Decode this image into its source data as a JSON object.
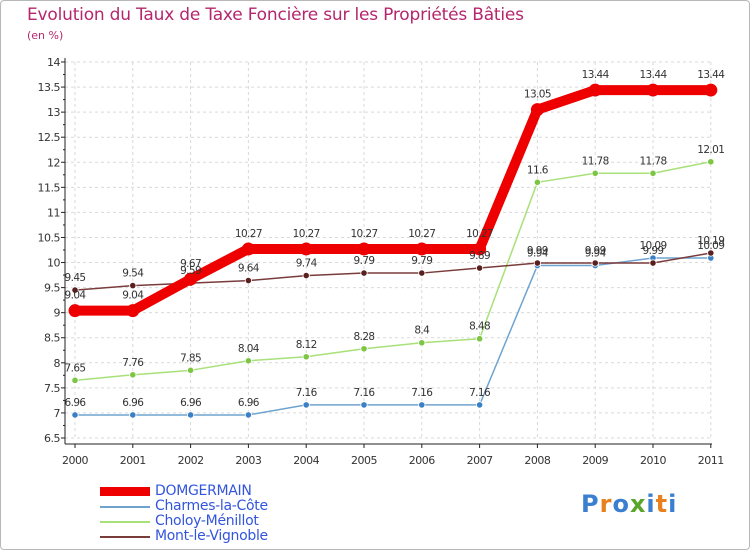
{
  "title": "Evolution du Taux de Taxe Foncière sur les Propriétés Bâties",
  "subtitle": "(en %)",
  "logo": {
    "text": "Proxiti",
    "colors": [
      "#3a7fd0",
      "#e8801e",
      "#3a7fd0",
      "#5aa62a",
      "#3a7fd0",
      "#e8801e",
      "#3a7fd0"
    ]
  },
  "chart_data": {
    "type": "line",
    "title": "Evolution du Taux de Taxe Foncière sur les Propriétés Bâties",
    "ylabel": "(en %)",
    "xlabel": "",
    "ylim": [
      6.5,
      14
    ],
    "yticks": [
      "6.5",
      "7",
      "7.5",
      "8",
      "8.5",
      "9",
      "9.5",
      "10",
      "10.5",
      "11",
      "11.5",
      "12",
      "12.5",
      "13",
      "13.5",
      "14"
    ],
    "categories": [
      "2000",
      "2001",
      "2002",
      "2003",
      "2004",
      "2005",
      "2006",
      "2007",
      "2008",
      "2009",
      "2010",
      "2011"
    ],
    "series": [
      {
        "name": "Charmes-la-Côte",
        "color": "#6fa3cf",
        "marker": "#3b7fc4",
        "values": [
          6.96,
          6.96,
          6.96,
          6.96,
          7.16,
          7.16,
          7.16,
          7.16,
          9.94,
          9.94,
          10.09,
          10.09
        ],
        "labels": [
          "6.96",
          "6.96",
          "6.96",
          "6.96",
          "7.16",
          "7.16",
          "7.16",
          "7.16",
          "9.94",
          "9.94",
          "10.09",
          "10.09"
        ]
      },
      {
        "name": "Choloy-Ménillot",
        "color": "#a8e07a",
        "marker": "#7cc644",
        "values": [
          7.65,
          7.76,
          7.85,
          8.04,
          8.12,
          8.28,
          8.4,
          8.48,
          11.6,
          11.78,
          11.78,
          12.01
        ],
        "labels": [
          "7.65",
          "7.76",
          "7.85",
          "8.04",
          "8.12",
          "8.28",
          "8.4",
          "8.48",
          "11.6",
          "11.78",
          "11.78",
          "12.01"
        ]
      },
      {
        "name": "Mont-le-Vignoble",
        "color": "#7a3b3b",
        "marker": "#5a1f1f",
        "values": [
          9.45,
          9.54,
          9.59,
          9.64,
          9.74,
          9.79,
          9.79,
          9.89,
          9.99,
          9.99,
          9.99,
          10.19
        ],
        "labels": [
          "9.45",
          "9.54",
          "9.59",
          "9.64",
          "9.74",
          "9.79",
          "9.79",
          "9.89",
          "9.99",
          "9.99",
          "9.99",
          "10.19"
        ]
      },
      {
        "name": "DOMGERMAIN",
        "color": "#ee0000",
        "marker": "#ee0000",
        "values": [
          9.04,
          9.04,
          9.67,
          10.27,
          10.27,
          10.27,
          10.27,
          10.27,
          13.05,
          13.44,
          13.44,
          13.44
        ],
        "labels": [
          "9.04",
          "9.04",
          "9.67",
          "10.27",
          "10.27",
          "10.27",
          "10.27",
          "10.27",
          "13.05",
          "13.44",
          "13.44",
          "13.44"
        ]
      }
    ],
    "legend": [
      {
        "name": "DOMGERMAIN",
        "color": "#ee0000",
        "text_color": "#3355dd",
        "thick": true
      },
      {
        "name": "Charmes-la-Côte",
        "color": "#6fa3cf",
        "text_color": "#3355dd",
        "thick": false
      },
      {
        "name": "Choloy-Ménillot",
        "color": "#a8e07a",
        "text_color": "#3355dd",
        "thick": false
      },
      {
        "name": "Mont-le-Vignoble",
        "color": "#7a3b3b",
        "text_color": "#3355dd",
        "thick": false
      }
    ]
  }
}
